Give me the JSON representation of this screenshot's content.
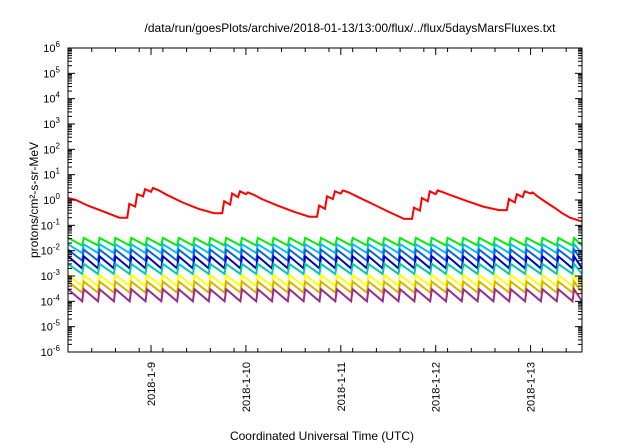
{
  "chart_data": {
    "type": "line",
    "title": "/data/run/goesPlots/archive/2018-01-13/13:00/flux/../flux/5daysMarsFluxes.txt",
    "xlabel": "Coordinated Universal Time (UTC)",
    "ylabel": "protons/cm²-s-sr-MeV",
    "yscale": "log",
    "ylim": [
      1e-06,
      1000000.0
    ],
    "xlim": [
      "2018-01-08 03:00",
      "2018-01-13 13:00"
    ],
    "grid": false,
    "legend": "none",
    "x_ticks": [
      "2018-1-9",
      "2018-1-10",
      "2018-1-11",
      "2018-1-12",
      "2018-1-13"
    ],
    "y_ticks": [
      {
        "base": "10",
        "exp": "6"
      },
      {
        "base": "10",
        "exp": "5"
      },
      {
        "base": "10",
        "exp": "4"
      },
      {
        "base": "10",
        "exp": "3"
      },
      {
        "base": "10",
        "exp": "2"
      },
      {
        "base": "10",
        "exp": "1"
      },
      {
        "base": "10",
        "exp": "0"
      },
      {
        "base": "10",
        "exp": "-1"
      },
      {
        "base": "10",
        "exp": "-2"
      },
      {
        "base": "10",
        "exp": "-3"
      },
      {
        "base": "10",
        "exp": "-4"
      },
      {
        "base": "10",
        "exp": "-5"
      },
      {
        "base": "10",
        "exp": "-6"
      }
    ],
    "series": [
      {
        "color": "#ff0000",
        "x": [
          "2018-01-08 03:00",
          "2018-01-08 05:00",
          "2018-01-08 08:00",
          "2018-01-08 12:00",
          "2018-01-08 16:00",
          "2018-01-08 18:00",
          "2018-01-08 18:30",
          "2018-01-08 20:00",
          "2018-01-08 20:30",
          "2018-01-08 22:00",
          "2018-01-08 22:30",
          "2018-01-09 00:00",
          "2018-01-09 00:30",
          "2018-01-09 02:00",
          "2018-01-09 04:00",
          "2018-01-09 08:00",
          "2018-01-09 12:00",
          "2018-01-09 16:00",
          "2018-01-09 18:00",
          "2018-01-09 18:30",
          "2018-01-09 20:00",
          "2018-01-09 20:30",
          "2018-01-09 22:00",
          "2018-01-09 22:30",
          "2018-01-10 00:00",
          "2018-01-10 00:30",
          "2018-01-10 02:00",
          "2018-01-10 04:00",
          "2018-01-10 08:00",
          "2018-01-10 12:00",
          "2018-01-10 16:00",
          "2018-01-10 18:00",
          "2018-01-10 18:30",
          "2018-01-10 20:00",
          "2018-01-10 20:30",
          "2018-01-10 22:00",
          "2018-01-10 22:30",
          "2018-01-11 00:00",
          "2018-01-11 00:30",
          "2018-01-11 02:00",
          "2018-01-11 04:00",
          "2018-01-11 08:00",
          "2018-01-11 12:00",
          "2018-01-11 16:00",
          "2018-01-11 18:00",
          "2018-01-11 18:30",
          "2018-01-11 20:00",
          "2018-01-11 20:30",
          "2018-01-11 22:00",
          "2018-01-11 22:30",
          "2018-01-12 00:00",
          "2018-01-12 00:30",
          "2018-01-12 02:00",
          "2018-01-12 04:00",
          "2018-01-12 08:00",
          "2018-01-12 12:00",
          "2018-01-12 16:00",
          "2018-01-12 18:00",
          "2018-01-12 18:30",
          "2018-01-12 20:00",
          "2018-01-12 20:30",
          "2018-01-12 22:00",
          "2018-01-12 22:30",
          "2018-01-13 00:00",
          "2018-01-13 00:30",
          "2018-01-13 02:00",
          "2018-01-13 04:00",
          "2018-01-13 06:00",
          "2018-01-13 08:00",
          "2018-01-13 10:00",
          "2018-01-13 12:00",
          "2018-01-13 13:00"
        ],
        "y": [
          1.2,
          1.0,
          0.6,
          0.35,
          0.2,
          0.2,
          0.7,
          0.55,
          1.7,
          1.4,
          2.7,
          2.1,
          3.0,
          2.4,
          1.6,
          0.8,
          0.45,
          0.3,
          0.3,
          0.9,
          0.65,
          1.8,
          1.3,
          2.2,
          1.7,
          2.0,
          1.6,
          1.1,
          0.6,
          0.35,
          0.22,
          0.22,
          0.6,
          0.45,
          1.4,
          1.1,
          2.2,
          1.8,
          2.4,
          2.0,
          1.4,
          0.7,
          0.35,
          0.18,
          0.18,
          0.5,
          0.38,
          1.2,
          0.9,
          2.2,
          1.7,
          2.4,
          2.0,
          1.5,
          0.9,
          0.55,
          0.4,
          0.4,
          1.1,
          0.8,
          1.7,
          1.3,
          2.2,
          1.8,
          2.0,
          1.3,
          0.8,
          0.5,
          0.3,
          0.2,
          0.16,
          0.14
        ]
      },
      {
        "color": "#00ee00",
        "style": "sawtooth",
        "period_hours": 4,
        "peak": 0.032,
        "trough": 0.016
      },
      {
        "color": "#00bbff",
        "style": "sawtooth",
        "period_hours": 4,
        "peak": 0.018,
        "trough": 0.008
      },
      {
        "color": "#1060e0",
        "style": "sawtooth",
        "period_hours": 4,
        "peak": 0.011,
        "trough": 0.004
      },
      {
        "color": "#0000cc",
        "style": "sawtooth",
        "period_hours": 4,
        "peak": 0.006,
        "trough": 0.002
      },
      {
        "color": "#00ccaa",
        "style": "sawtooth",
        "period_hours": 4,
        "peak": 0.003,
        "trough": 0.0012
      },
      {
        "color": "#ffff00",
        "style": "sawtooth",
        "period_hours": 4,
        "peak": 0.0011,
        "trough": 0.0004
      },
      {
        "color": "#d8b000",
        "style": "sawtooth",
        "period_hours": 4,
        "peak": 0.0006,
        "trough": 0.00022
      },
      {
        "color": "#9b2d8a",
        "style": "sawtooth",
        "period_hours": 4,
        "peak": 0.0003,
        "trough": 0.0001
      }
    ]
  }
}
